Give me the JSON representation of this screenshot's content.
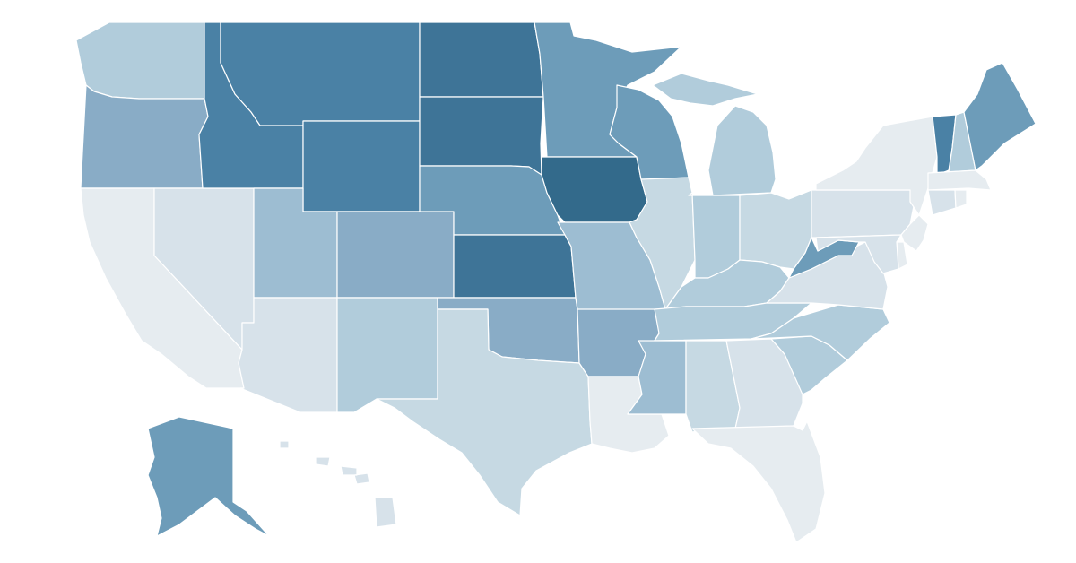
{
  "map": {
    "type": "choropleth",
    "region": "United States",
    "legend": "none",
    "color_scale": [
      "#e6ecf0",
      "#d7e2ea",
      "#c6d9e3",
      "#b1ccdb",
      "#9dbdd2",
      "#89acc6",
      "#6d9cb9",
      "#5a8db0",
      "#4a81a5",
      "#3e7497",
      "#336a8b"
    ]
  },
  "states": [
    {
      "code": "WA",
      "level": 3
    },
    {
      "code": "OR",
      "level": 5
    },
    {
      "code": "CA",
      "level": 0
    },
    {
      "code": "NV",
      "level": 1
    },
    {
      "code": "ID",
      "level": 8
    },
    {
      "code": "MT",
      "level": 8
    },
    {
      "code": "WY",
      "level": 8
    },
    {
      "code": "UT",
      "level": 4
    },
    {
      "code": "AZ",
      "level": 1
    },
    {
      "code": "CO",
      "level": 5
    },
    {
      "code": "NM",
      "level": 3
    },
    {
      "code": "ND",
      "level": 9
    },
    {
      "code": "SD",
      "level": 9
    },
    {
      "code": "NE",
      "level": 6
    },
    {
      "code": "KS",
      "level": 9
    },
    {
      "code": "OK",
      "level": 5
    },
    {
      "code": "TX",
      "level": 2
    },
    {
      "code": "MN",
      "level": 6
    },
    {
      "code": "IA",
      "level": 10
    },
    {
      "code": "MO",
      "level": 4
    },
    {
      "code": "AR",
      "level": 5
    },
    {
      "code": "LA",
      "level": 0
    },
    {
      "code": "WI",
      "level": 6
    },
    {
      "code": "IL",
      "level": 2
    },
    {
      "code": "MI",
      "level": 3
    },
    {
      "code": "IN",
      "level": 3
    },
    {
      "code": "OH",
      "level": 2
    },
    {
      "code": "KY",
      "level": 3
    },
    {
      "code": "TN",
      "level": 3
    },
    {
      "code": "MS",
      "level": 4
    },
    {
      "code": "AL",
      "level": 2
    },
    {
      "code": "GA",
      "level": 1
    },
    {
      "code": "FL",
      "level": 0
    },
    {
      "code": "SC",
      "level": 3
    },
    {
      "code": "NC",
      "level": 3
    },
    {
      "code": "VA",
      "level": 1
    },
    {
      "code": "WV",
      "level": 6
    },
    {
      "code": "PA",
      "level": 1
    },
    {
      "code": "NY",
      "level": 0
    },
    {
      "code": "VT",
      "level": 8
    },
    {
      "code": "NH",
      "level": 3
    },
    {
      "code": "ME",
      "level": 6
    },
    {
      "code": "MA",
      "level": 0
    },
    {
      "code": "CT",
      "level": 1
    },
    {
      "code": "RI",
      "level": 0
    },
    {
      "code": "NJ",
      "level": 0
    },
    {
      "code": "DE",
      "level": 0
    },
    {
      "code": "MD",
      "level": 1
    },
    {
      "code": "AK",
      "level": 6
    },
    {
      "code": "HI",
      "level": 1
    }
  ]
}
